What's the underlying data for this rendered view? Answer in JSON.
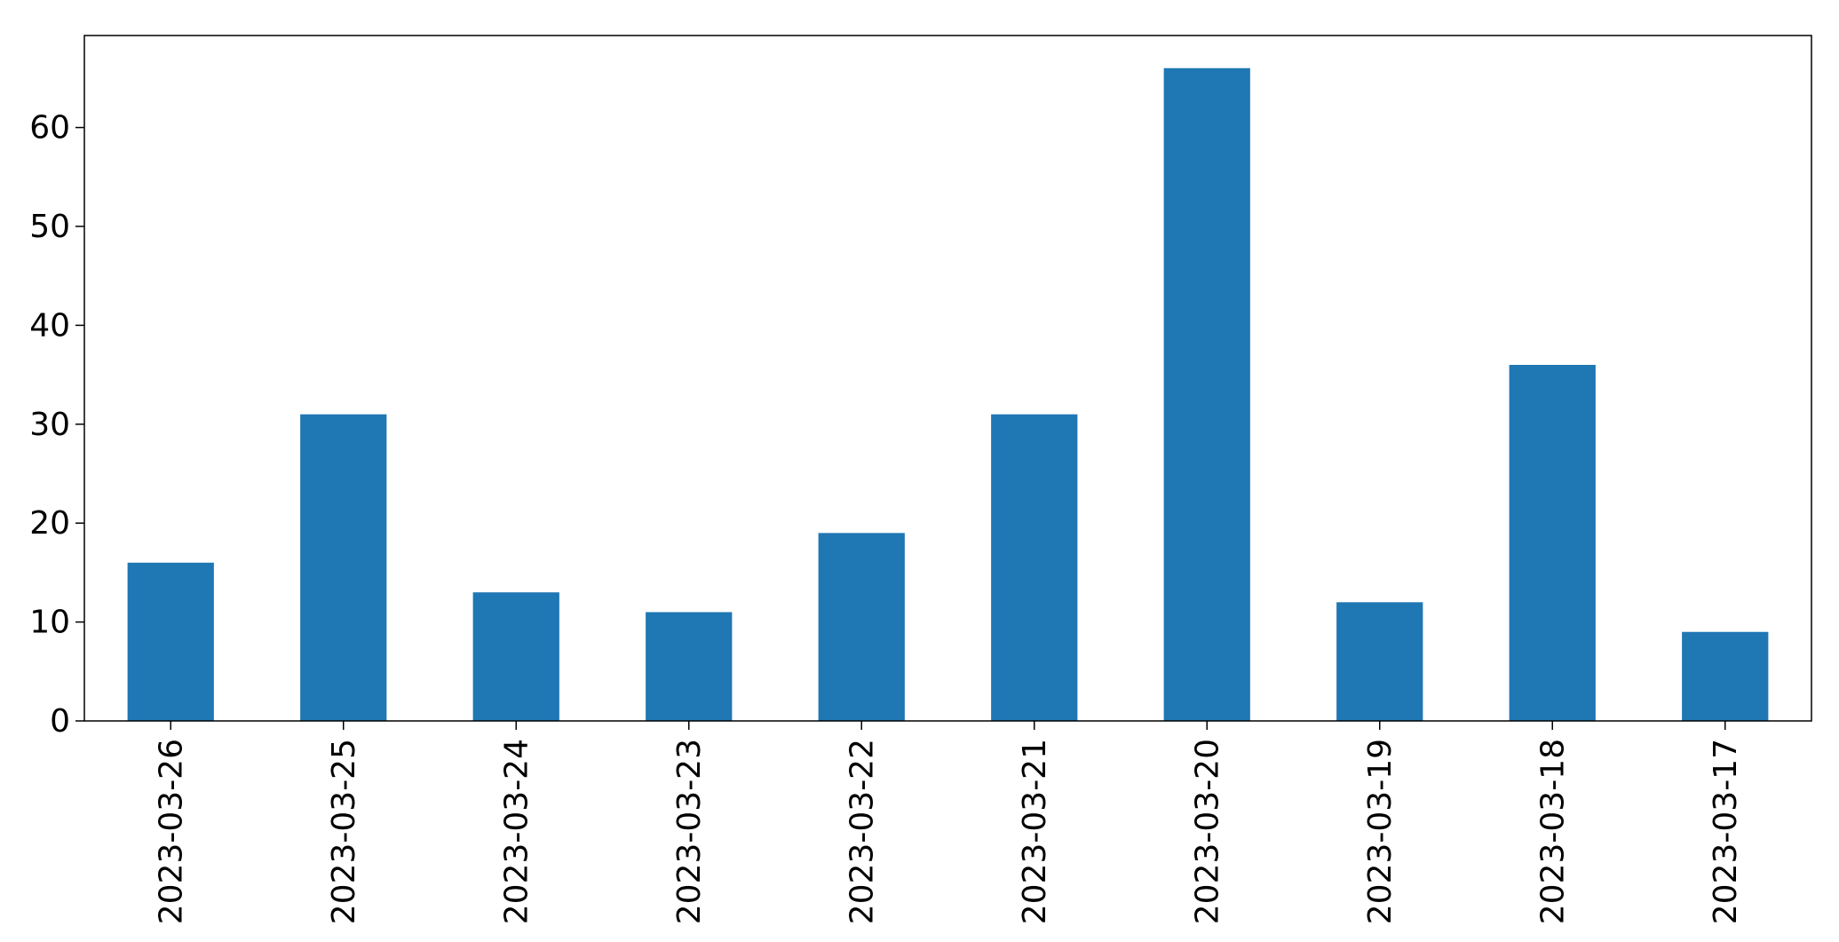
{
  "chart_data": {
    "type": "bar",
    "title": "",
    "xlabel": "",
    "ylabel": "",
    "categories": [
      "2023-03-26",
      "2023-03-25",
      "2023-03-24",
      "2023-03-23",
      "2023-03-22",
      "2023-03-21",
      "2023-03-20",
      "2023-03-19",
      "2023-03-18",
      "2023-03-17"
    ],
    "values": [
      16,
      31,
      13,
      11,
      19,
      31,
      66,
      12,
      36,
      9
    ],
    "ylim": [
      0,
      69.3
    ],
    "yticks": [
      0,
      10,
      20,
      30,
      40,
      50,
      60
    ],
    "ytick_labels": [
      "0",
      "10",
      "20",
      "30",
      "40",
      "50",
      "60"
    ],
    "bar_color": "#1f77b4",
    "grid": false,
    "legend": "none"
  }
}
